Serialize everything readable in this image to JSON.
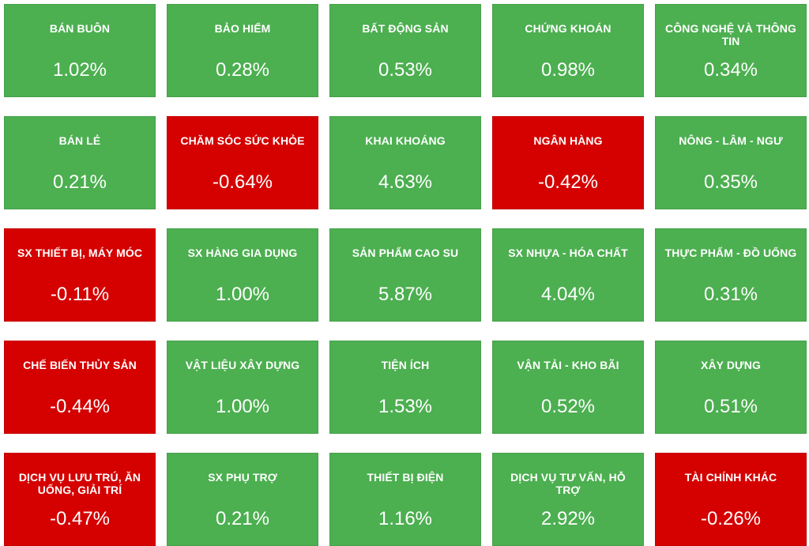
{
  "colors": {
    "up": "#4caf50",
    "down": "#d50000",
    "text": "#ffffff"
  },
  "tiles": [
    {
      "name": "BÁN BUÔN",
      "value": "1.02%",
      "trend": "up"
    },
    {
      "name": "BẢO HIỂM",
      "value": "0.28%",
      "trend": "up"
    },
    {
      "name": "BẤT ĐỘNG SẢN",
      "value": "0.53%",
      "trend": "up"
    },
    {
      "name": "CHỨNG KHOÁN",
      "value": "0.98%",
      "trend": "up"
    },
    {
      "name": "CÔNG NGHỆ VÀ THÔNG TIN",
      "value": "0.34%",
      "trend": "up"
    },
    {
      "name": "BÁN LẺ",
      "value": "0.21%",
      "trend": "up"
    },
    {
      "name": "CHĂM SÓC SỨC KHỎE",
      "value": "-0.64%",
      "trend": "down"
    },
    {
      "name": "KHAI KHOÁNG",
      "value": "4.63%",
      "trend": "up"
    },
    {
      "name": "NGÂN HÀNG",
      "value": "-0.42%",
      "trend": "down"
    },
    {
      "name": "NÔNG - LÂM - NGƯ",
      "value": "0.35%",
      "trend": "up"
    },
    {
      "name": "SX THIẾT BỊ, MÁY MÓC",
      "value": "-0.11%",
      "trend": "down"
    },
    {
      "name": "SX HÀNG GIA DỤNG",
      "value": "1.00%",
      "trend": "up"
    },
    {
      "name": "SẢN PHẨM CAO SU",
      "value": "5.87%",
      "trend": "up"
    },
    {
      "name": "SX NHỰA - HÓA CHẤT",
      "value": "4.04%",
      "trend": "up"
    },
    {
      "name": "THỰC PHẨM - ĐỒ UỐNG",
      "value": "0.31%",
      "trend": "up"
    },
    {
      "name": "CHẾ BIẾN THỦY SẢN",
      "value": "-0.44%",
      "trend": "down"
    },
    {
      "name": "VẬT LIỆU XÂY DỰNG",
      "value": "1.00%",
      "trend": "up"
    },
    {
      "name": "TIỆN ÍCH",
      "value": "1.53%",
      "trend": "up"
    },
    {
      "name": "VẬN TẢI - KHO BÃI",
      "value": "0.52%",
      "trend": "up"
    },
    {
      "name": "XÂY DỰNG",
      "value": "0.51%",
      "trend": "up"
    },
    {
      "name": "DỊCH VỤ LƯU TRÚ, ĂN UỐNG, GIẢI TRÍ",
      "value": "-0.47%",
      "trend": "down"
    },
    {
      "name": "SX PHỤ TRỢ",
      "value": "0.21%",
      "trend": "up"
    },
    {
      "name": "THIẾT BỊ ĐIỆN",
      "value": "1.16%",
      "trend": "up"
    },
    {
      "name": "DỊCH VỤ TƯ VẤN, HỖ TRỢ",
      "value": "2.92%",
      "trend": "up"
    },
    {
      "name": "TÀI CHÍNH KHÁC",
      "value": "-0.26%",
      "trend": "down"
    }
  ]
}
